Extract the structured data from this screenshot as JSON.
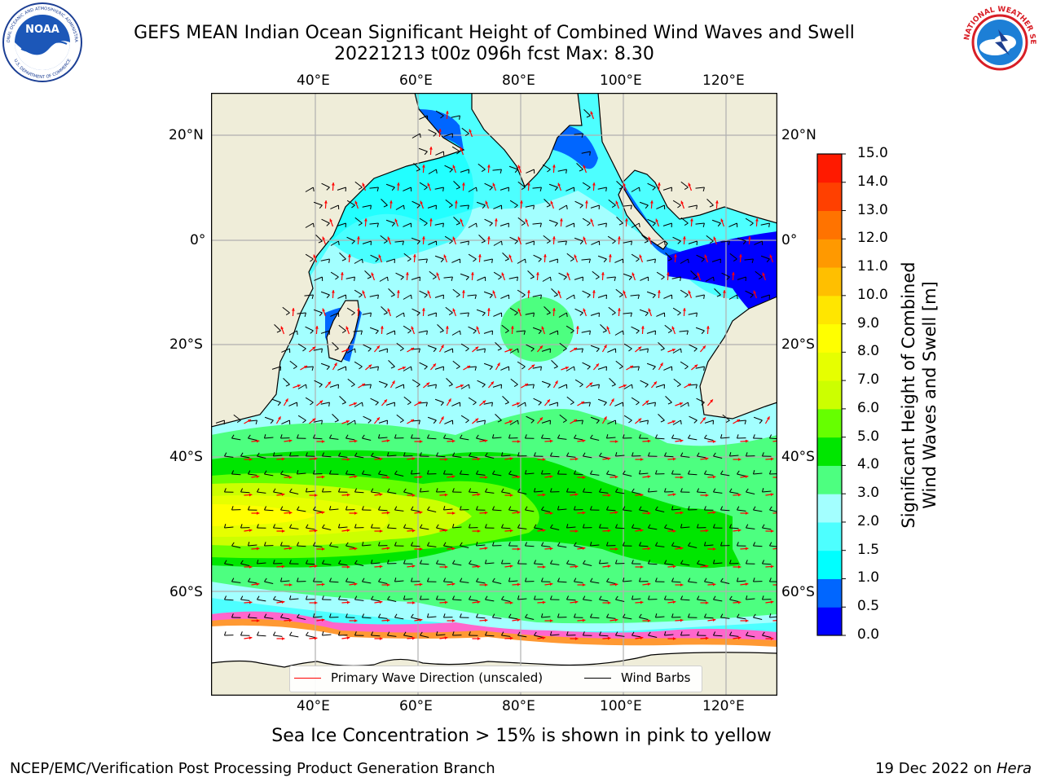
{
  "title": {
    "line1": "GEFS MEAN Indian Ocean Significant Height of Combined Wind Waves and Swell",
    "line2": "20221213 t00z 096h fcst   Max: 8.30"
  },
  "map": {
    "top_lon_labels": [
      "40°E",
      "60°E",
      "80°E",
      "100°E",
      "120°E"
    ],
    "bottom_lon_labels": [
      "40°E",
      "60°E",
      "80°E",
      "100°E",
      "120°E"
    ],
    "left_lat_labels": [
      "20°N",
      "0°",
      "20°S",
      "40°S",
      "60°S"
    ],
    "right_lat_labels": [
      "20°N",
      "0°",
      "20°S",
      "40°S",
      "60°S"
    ],
    "colors": {
      "land": "#efedd9",
      "sea_ice_white": "#ffffff",
      "sea_ice_pink": "#ff66cc",
      "wave_arrow": "#ff0000",
      "wind_barb": "#000000",
      "grid": "#b0b0b0"
    }
  },
  "legend": {
    "primary_wave_label": "Primary Wave Direction (unscaled)",
    "wind_barbs_label": "Wind Barbs",
    "primary_wave_color": "#ff0000",
    "wind_barbs_color": "#000000"
  },
  "colorbar": {
    "label_line1": "Significant Height of Combined",
    "label_line2": "Wind Waves and Swell [m]",
    "ticks": [
      "15.0",
      "14.0",
      "13.0",
      "12.0",
      "11.0",
      "10.0",
      "9.0",
      "8.0",
      "7.0",
      "6.0",
      "5.0",
      "4.0",
      "3.0",
      "2.0",
      "1.5",
      "1.0",
      "0.5",
      "0.0"
    ],
    "colors": [
      "#0000ff",
      "#0066ff",
      "#00ffff",
      "#4dffff",
      "#a3ffff",
      "#4dff80",
      "#00e600",
      "#66ff00",
      "#ccff00",
      "#e6ff00",
      "#ffff00",
      "#ffe600",
      "#ffbf00",
      "#ff9900",
      "#ff7300",
      "#ff4000",
      "#ff1a00"
    ]
  },
  "subtitle": "Sea Ice Concentration > 15% is shown in pink to yellow",
  "footer": {
    "left": "NCEP/EMC/Verification Post Processing Product Generation Branch",
    "right_prefix": "19 Dec 2022 on ",
    "right_host": "Hera"
  },
  "logos": {
    "noaa_text": "NOAA",
    "noaa_ring_text": "NATIONAL OCEANIC AND ATMOSPHERIC ADMINISTRATION",
    "noaa_bottom_text": "U.S. DEPARTMENT OF COMMERCE",
    "nws_ring_text": "NATIONAL WEATHER SERVICE"
  }
}
